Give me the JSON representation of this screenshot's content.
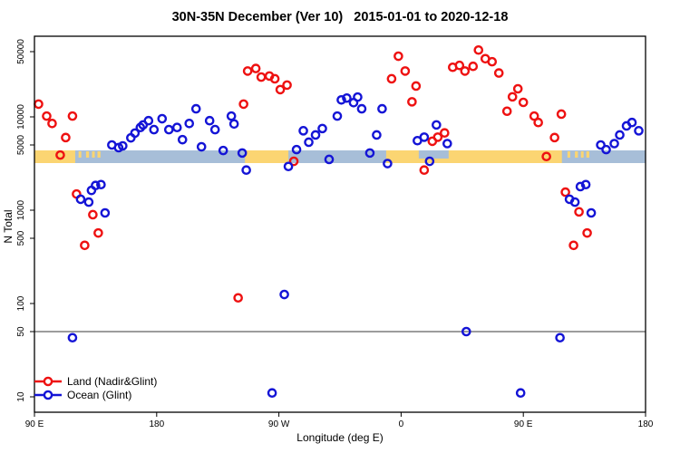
{
  "title": "30N-35N December (Ver 10)   2015-01-01 to 2020-12-18",
  "axes": {
    "x_label": "Longitude (deg E)",
    "y_label": "N Total"
  },
  "legend": [
    {
      "label": "Land (Nadir&Glint)",
      "color": "#ee1111"
    },
    {
      "label": "Ocean (Glint)",
      "color": "#1414d6"
    }
  ],
  "chart_data": {
    "type": "scatter",
    "title": "30N-35N December (Ver 10)   2015-01-01 to 2020-12-18",
    "xlabel": "Longitude (deg E)",
    "ylabel": "N Total",
    "x_axis": {
      "range": [
        -270,
        180
      ],
      "ticks": [
        {
          "pos": -270,
          "label": "90 E"
        },
        {
          "pos": -180,
          "label": "180"
        },
        {
          "pos": -90,
          "label": "90 W"
        },
        {
          "pos": 0,
          "label": "0"
        },
        {
          "pos": 90,
          "label": "90 E"
        },
        {
          "pos": 180,
          "label": "180"
        }
      ]
    },
    "y_axis": {
      "scale": "log",
      "range": [
        10,
        50000
      ],
      "ticks": [
        10,
        50,
        100,
        500,
        1000,
        5000,
        10000,
        50000
      ]
    },
    "reference_line_y": 50,
    "map_band": {
      "note": "land/ocean strip map of the 30N-35N latitude belt drawn at N ~ 4000",
      "ocean_color": "#a7bed8",
      "land_color": "#fbd572",
      "land_segments_lon": [
        [
          -270,
          -240
        ],
        [
          -115,
          -83
        ],
        [
          -11,
          118.4
        ]
      ],
      "island_segments_lon": [
        [
          -237.5,
          -235.5
        ],
        [
          -232,
          -229.8
        ],
        [
          -227.6,
          -225.6
        ],
        [
          -223.6,
          -221.4
        ],
        [
          122.5,
          124.5
        ],
        [
          128,
          130.2
        ],
        [
          132.4,
          134.4
        ],
        [
          136.4,
          138.6
        ]
      ],
      "water_overlay_segments_lon": [
        [
          13,
          35
        ]
      ]
    },
    "series": [
      {
        "name": "Land (Nadir&Glint)",
        "color": "#ee1111",
        "marker": "open-circle",
        "points": [
          [
            -267,
            13700
          ],
          [
            -261,
            10200
          ],
          [
            -257,
            8500
          ],
          [
            -251,
            3900
          ],
          [
            -247,
            6000
          ],
          [
            -242,
            10200
          ],
          [
            -239,
            1490
          ],
          [
            -233,
            420
          ],
          [
            -227,
            895
          ],
          [
            -223,
            570
          ],
          [
            -120,
            115
          ],
          [
            -116,
            13700
          ],
          [
            -113,
            31000
          ],
          [
            -107,
            33000
          ],
          [
            -103,
            26700
          ],
          [
            -97,
            27400
          ],
          [
            -93,
            25600
          ],
          [
            -89,
            19600
          ],
          [
            -84,
            21900
          ],
          [
            -79,
            3340
          ],
          [
            -7,
            25600
          ],
          [
            -2,
            44700
          ],
          [
            3,
            31000
          ],
          [
            8,
            14500
          ],
          [
            11,
            21400
          ],
          [
            17,
            2690
          ],
          [
            23,
            5480
          ],
          [
            27,
            6060
          ],
          [
            32,
            6730
          ],
          [
            38,
            34000
          ],
          [
            43,
            35600
          ],
          [
            47,
            31000
          ],
          [
            53,
            34800
          ],
          [
            57,
            52000
          ],
          [
            62,
            42000
          ],
          [
            67,
            39000
          ],
          [
            72,
            29500
          ],
          [
            78,
            11500
          ],
          [
            82,
            16400
          ],
          [
            86,
            20000
          ],
          [
            90,
            14300
          ],
          [
            98,
            10200
          ],
          [
            101,
            8700
          ],
          [
            107,
            3760
          ],
          [
            113,
            6000
          ],
          [
            118,
            10700
          ],
          [
            121,
            1560
          ],
          [
            127,
            420
          ],
          [
            131,
            960
          ],
          [
            137,
            570
          ]
        ]
      },
      {
        "name": "Ocean (Glint)",
        "color": "#1414d6",
        "marker": "open-circle",
        "points": [
          [
            -242,
            43
          ],
          [
            -236,
            1310
          ],
          [
            -230,
            1220
          ],
          [
            -228,
            1630
          ],
          [
            -225,
            1840
          ],
          [
            -221,
            1880
          ],
          [
            -218,
            935
          ],
          [
            -213,
            5000
          ],
          [
            -208,
            4680
          ],
          [
            -205,
            4890
          ],
          [
            -199,
            5960
          ],
          [
            -196,
            6700
          ],
          [
            -192,
            7700
          ],
          [
            -190,
            8200
          ],
          [
            -186,
            9100
          ],
          [
            -182,
            7300
          ],
          [
            -176,
            9560
          ],
          [
            -171,
            7300
          ],
          [
            -165,
            7700
          ],
          [
            -161,
            5700
          ],
          [
            -156,
            8500
          ],
          [
            -151,
            12200
          ],
          [
            -147,
            4780
          ],
          [
            -141,
            9100
          ],
          [
            -137,
            7300
          ],
          [
            -131,
            4360
          ],
          [
            -125,
            10200
          ],
          [
            -123,
            8400
          ],
          [
            -117,
            4100
          ],
          [
            -114,
            2690
          ],
          [
            -95,
            11
          ],
          [
            -86,
            125
          ],
          [
            -83,
            2940
          ],
          [
            -77,
            4460
          ],
          [
            -72,
            7100
          ],
          [
            -68,
            5350
          ],
          [
            -63,
            6400
          ],
          [
            -58,
            7500
          ],
          [
            -53,
            3500
          ],
          [
            -47,
            10200
          ],
          [
            -44,
            15200
          ],
          [
            -40,
            15900
          ],
          [
            -35,
            14200
          ],
          [
            -32,
            16300
          ],
          [
            -29,
            12200
          ],
          [
            -23,
            4100
          ],
          [
            -18,
            6400
          ],
          [
            -14,
            12200
          ],
          [
            -10,
            3160
          ],
          [
            12,
            5560
          ],
          [
            17,
            6060
          ],
          [
            21,
            3340
          ],
          [
            26,
            8200
          ],
          [
            34,
            5170
          ],
          [
            48,
            50
          ],
          [
            88,
            11
          ],
          [
            117,
            43
          ],
          [
            124,
            1310
          ],
          [
            128,
            1220
          ],
          [
            132,
            1790
          ],
          [
            136,
            1880
          ],
          [
            140,
            935
          ],
          [
            147,
            5000
          ],
          [
            151,
            4460
          ],
          [
            157,
            5170
          ],
          [
            161,
            6400
          ],
          [
            166,
            8000
          ],
          [
            170,
            8700
          ],
          [
            175,
            7100
          ]
        ]
      }
    ]
  }
}
